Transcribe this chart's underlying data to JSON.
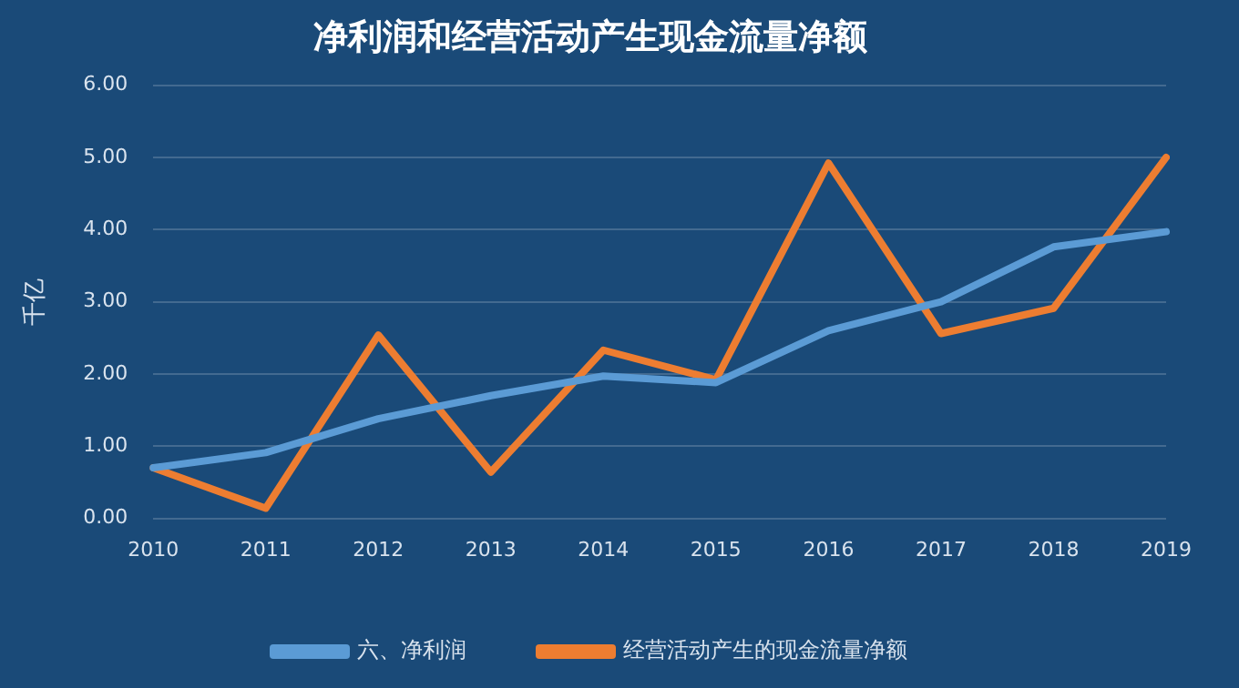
{
  "chart_data": {
    "type": "line",
    "title": "净利润和经营活动产生现金流量净额",
    "ylabel": "千亿",
    "categories": [
      "2010",
      "2011",
      "2012",
      "2013",
      "2014",
      "2015",
      "2016",
      "2017",
      "2018",
      "2019"
    ],
    "series": [
      {
        "name": "六、净利润",
        "color": "#5b9bd5",
        "values": [
          0.7,
          0.91,
          1.38,
          1.7,
          1.97,
          1.88,
          2.6,
          3.0,
          3.76,
          3.97
        ]
      },
      {
        "name": "经营活动产生的现金流量净额",
        "color": "#ed7d31",
        "values": [
          0.7,
          0.14,
          2.54,
          0.64,
          2.33,
          1.92,
          4.92,
          2.56,
          2.91,
          5.0
        ]
      }
    ],
    "ylim": [
      0,
      6
    ],
    "yticks": [
      {
        "value": 0,
        "label": "0.00"
      },
      {
        "value": 1,
        "label": "1.00"
      },
      {
        "value": 2,
        "label": "2.00"
      },
      {
        "value": 3,
        "label": "3.00"
      },
      {
        "value": 4,
        "label": "4.00"
      },
      {
        "value": 5,
        "label": "5.00"
      },
      {
        "value": 6,
        "label": "6.00"
      }
    ],
    "grid": "y",
    "legend": "bottom",
    "marker": "none",
    "line_style": "solid"
  }
}
